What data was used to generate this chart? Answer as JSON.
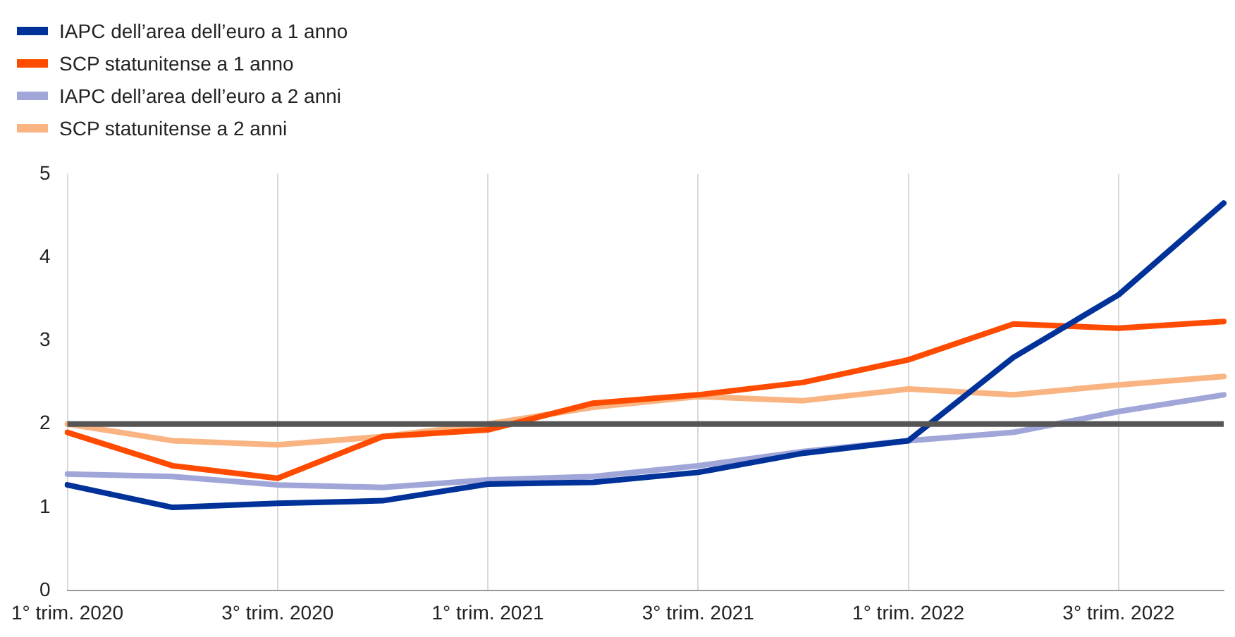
{
  "chart_data": {
    "type": "line",
    "categories": [
      "1° trim. 2020",
      null,
      "3° trim. 2020",
      null,
      "1° trim. 2021",
      null,
      "3° trim. 2021",
      null,
      "1° trim. 2022",
      null,
      "3° trim. 2022",
      null
    ],
    "series": [
      {
        "name": "IAPC dell’area dell’euro a 1 anno",
        "color": "#003299",
        "values": [
          1.27,
          1.0,
          1.05,
          1.08,
          1.28,
          1.3,
          1.42,
          1.65,
          1.8,
          2.8,
          3.55,
          4.65
        ]
      },
      {
        "name": "SCP statunitense a 1 anno",
        "color": "#ff4b00",
        "values": [
          1.9,
          1.5,
          1.35,
          1.85,
          1.93,
          2.25,
          2.35,
          2.5,
          2.77,
          3.2,
          3.15,
          3.23
        ]
      },
      {
        "name": "IAPC dell’area dell’euro a 2 anni",
        "color": "#a0a6d8",
        "values": [
          1.4,
          1.37,
          1.27,
          1.24,
          1.33,
          1.37,
          1.5,
          1.67,
          1.8,
          1.9,
          2.15,
          2.35
        ]
      },
      {
        "name": "SCP statunitense a 2 anni",
        "color": "#f9b482",
        "values": [
          2.0,
          1.8,
          1.75,
          1.85,
          2.0,
          2.2,
          2.33,
          2.28,
          2.42,
          2.35,
          2.47,
          2.57
        ]
      }
    ],
    "ylim": [
      0,
      5
    ],
    "yticks": [
      0,
      1,
      2,
      3,
      4,
      5
    ],
    "grid": "x",
    "legend": "top left",
    "marker": "none",
    "line_style": "solid",
    "ref_lines": [
      {
        "axis": "y",
        "value": 2,
        "color": "#555555"
      }
    ]
  }
}
